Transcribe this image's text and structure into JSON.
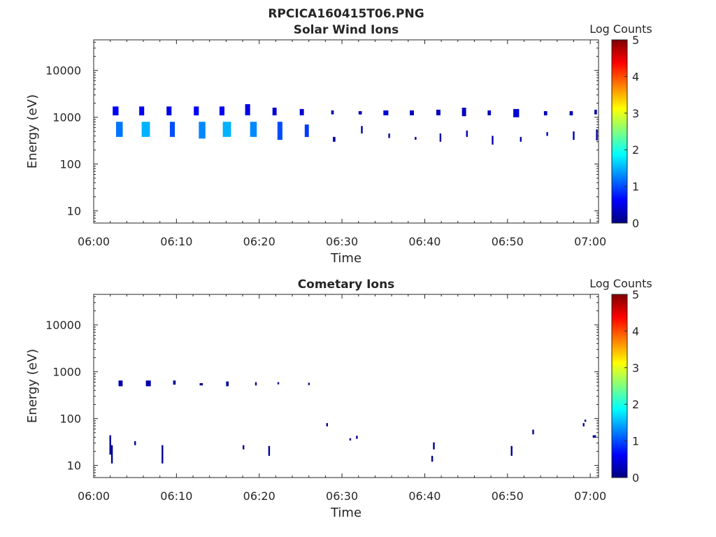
{
  "figure_title": "RPCICA160415T06.PNG",
  "colors": {
    "colormap": [
      "#00007f",
      "#0000ff",
      "#007fff",
      "#00ffff",
      "#7fff7f",
      "#ffff00",
      "#ff7f00",
      "#ff0000",
      "#7f0000"
    ],
    "axis": "#262626"
  },
  "chart_data": [
    {
      "type": "heatmap",
      "title": "Solar Wind Ions",
      "xlabel": "Time",
      "ylabel": "Energy (eV)",
      "x_range_minutes": [
        0,
        61
      ],
      "x_ticks": [
        {
          "v": 0,
          "label": "06:00"
        },
        {
          "v": 10,
          "label": "06:10"
        },
        {
          "v": 20,
          "label": "06:20"
        },
        {
          "v": 30,
          "label": "06:30"
        },
        {
          "v": 40,
          "label": "06:40"
        },
        {
          "v": 50,
          "label": "06:50"
        },
        {
          "v": 60,
          "label": "07:00"
        }
      ],
      "y_scale": "log",
      "y_range": [
        5.5,
        45000
      ],
      "y_ticks": [
        {
          "v": 10,
          "label": "10"
        },
        {
          "v": 100,
          "label": "100"
        },
        {
          "v": 1000,
          "label": "1000"
        },
        {
          "v": 10000,
          "label": "10000"
        }
      ],
      "colorbar": {
        "label": "Log Counts",
        "range": [
          0,
          5
        ],
        "ticks": [
          "0",
          "1",
          "2",
          "3",
          "4",
          "5"
        ]
      },
      "patches": [
        {
          "t": 2.3,
          "dt": 0.7,
          "e1": 1100,
          "e2": 1700,
          "c": 0.6
        },
        {
          "t": 2.7,
          "dt": 0.8,
          "e1": 380,
          "e2": 800,
          "c": 1.2
        },
        {
          "t": 5.5,
          "dt": 0.6,
          "e1": 1100,
          "e2": 1700,
          "c": 0.6
        },
        {
          "t": 5.8,
          "dt": 1.0,
          "e1": 380,
          "e2": 800,
          "c": 1.5
        },
        {
          "t": 8.8,
          "dt": 0.6,
          "e1": 1100,
          "e2": 1700,
          "c": 0.5
        },
        {
          "t": 9.2,
          "dt": 0.6,
          "e1": 380,
          "e2": 800,
          "c": 1.0
        },
        {
          "t": 12.1,
          "dt": 0.6,
          "e1": 1100,
          "e2": 1700,
          "c": 0.6
        },
        {
          "t": 12.7,
          "dt": 0.8,
          "e1": 350,
          "e2": 800,
          "c": 1.3
        },
        {
          "t": 15.2,
          "dt": 0.6,
          "e1": 1100,
          "e2": 1700,
          "c": 0.6
        },
        {
          "t": 15.6,
          "dt": 1.0,
          "e1": 380,
          "e2": 800,
          "c": 1.5
        },
        {
          "t": 18.3,
          "dt": 0.6,
          "e1": 1100,
          "e2": 1900,
          "c": 0.5
        },
        {
          "t": 18.9,
          "dt": 0.8,
          "e1": 380,
          "e2": 800,
          "c": 1.3
        },
        {
          "t": 21.6,
          "dt": 0.5,
          "e1": 1100,
          "e2": 1600,
          "c": 0.4
        },
        {
          "t": 22.2,
          "dt": 0.6,
          "e1": 330,
          "e2": 800,
          "c": 1.0
        },
        {
          "t": 24.9,
          "dt": 0.5,
          "e1": 1100,
          "e2": 1500,
          "c": 0.4
        },
        {
          "t": 25.5,
          "dt": 0.5,
          "e1": 380,
          "e2": 700,
          "c": 0.9
        },
        {
          "t": 28.7,
          "dt": 0.3,
          "e1": 1150,
          "e2": 1400,
          "c": 0.2
        },
        {
          "t": 28.9,
          "dt": 0.3,
          "e1": 300,
          "e2": 380,
          "c": 0.2
        },
        {
          "t": 32.0,
          "dt": 0.4,
          "e1": 1150,
          "e2": 1350,
          "c": 0.3
        },
        {
          "t": 32.3,
          "dt": 0.2,
          "e1": 450,
          "e2": 650,
          "c": 0.2
        },
        {
          "t": 35.0,
          "dt": 0.6,
          "e1": 1100,
          "e2": 1400,
          "c": 0.4
        },
        {
          "t": 35.6,
          "dt": 0.2,
          "e1": 360,
          "e2": 450,
          "c": 0.2
        },
        {
          "t": 38.2,
          "dt": 0.5,
          "e1": 1100,
          "e2": 1400,
          "c": 0.3
        },
        {
          "t": 38.8,
          "dt": 0.2,
          "e1": 330,
          "e2": 380,
          "c": 0.2
        },
        {
          "t": 41.4,
          "dt": 0.5,
          "e1": 1100,
          "e2": 1450,
          "c": 0.3
        },
        {
          "t": 41.8,
          "dt": 0.2,
          "e1": 300,
          "e2": 450,
          "c": 0.2
        },
        {
          "t": 44.5,
          "dt": 0.5,
          "e1": 1050,
          "e2": 1600,
          "c": 0.3
        },
        {
          "t": 45.0,
          "dt": 0.2,
          "e1": 380,
          "e2": 520,
          "c": 0.2
        },
        {
          "t": 47.6,
          "dt": 0.4,
          "e1": 1100,
          "e2": 1400,
          "c": 0.3
        },
        {
          "t": 48.1,
          "dt": 0.2,
          "e1": 260,
          "e2": 400,
          "c": 0.2
        },
        {
          "t": 50.7,
          "dt": 0.7,
          "e1": 1000,
          "e2": 1500,
          "c": 0.4
        },
        {
          "t": 51.5,
          "dt": 0.2,
          "e1": 300,
          "e2": 380,
          "c": 0.2
        },
        {
          "t": 54.4,
          "dt": 0.4,
          "e1": 1100,
          "e2": 1350,
          "c": 0.3
        },
        {
          "t": 54.7,
          "dt": 0.2,
          "e1": 400,
          "e2": 480,
          "c": 0.2
        },
        {
          "t": 57.5,
          "dt": 0.4,
          "e1": 1100,
          "e2": 1350,
          "c": 0.3
        },
        {
          "t": 57.9,
          "dt": 0.2,
          "e1": 330,
          "e2": 500,
          "c": 0.2
        },
        {
          "t": 60.5,
          "dt": 0.3,
          "e1": 1150,
          "e2": 1450,
          "c": 0.2
        },
        {
          "t": 60.7,
          "dt": 0.2,
          "e1": 320,
          "e2": 550,
          "c": 0.2
        }
      ]
    },
    {
      "type": "heatmap",
      "title": "Cometary Ions",
      "xlabel": "Time",
      "ylabel": "Energy (eV)",
      "x_range_minutes": [
        0,
        61
      ],
      "x_ticks": [
        {
          "v": 0,
          "label": "06:00"
        },
        {
          "v": 10,
          "label": "06:10"
        },
        {
          "v": 20,
          "label": "06:20"
        },
        {
          "v": 30,
          "label": "06:30"
        },
        {
          "v": 40,
          "label": "06:40"
        },
        {
          "v": 50,
          "label": "06:50"
        },
        {
          "v": 60,
          "label": "07:00"
        }
      ],
      "y_scale": "log",
      "y_range": [
        5.5,
        45000
      ],
      "y_ticks": [
        {
          "v": 10,
          "label": "10"
        },
        {
          "v": 100,
          "label": "100"
        },
        {
          "v": 1000,
          "label": "1000"
        },
        {
          "v": 10000,
          "label": "10000"
        }
      ],
      "colorbar": {
        "label": "Log Counts",
        "range": [
          0,
          5
        ],
        "ticks": [
          "0",
          "1",
          "2",
          "3",
          "4",
          "5"
        ]
      },
      "patches": [
        {
          "t": 3.0,
          "dt": 0.5,
          "e1": 490,
          "e2": 650,
          "c": 0.2
        },
        {
          "t": 6.3,
          "dt": 0.6,
          "e1": 490,
          "e2": 650,
          "c": 0.2
        },
        {
          "t": 9.6,
          "dt": 0.3,
          "e1": 530,
          "e2": 650,
          "c": 0.1
        },
        {
          "t": 12.8,
          "dt": 0.4,
          "e1": 510,
          "e2": 570,
          "c": 0.1
        },
        {
          "t": 16.0,
          "dt": 0.3,
          "e1": 490,
          "e2": 620,
          "c": 0.1
        },
        {
          "t": 19.5,
          "dt": 0.2,
          "e1": 510,
          "e2": 600,
          "c": 0.1
        },
        {
          "t": 22.2,
          "dt": 0.2,
          "e1": 540,
          "e2": 600,
          "c": 0.1
        },
        {
          "t": 25.9,
          "dt": 0.2,
          "e1": 520,
          "e2": 580,
          "c": 0.1
        },
        {
          "t": 1.9,
          "dt": 0.2,
          "e1": 17,
          "e2": 44,
          "c": 0.1
        },
        {
          "t": 2.1,
          "dt": 0.2,
          "e1": 11,
          "e2": 27,
          "c": 0.1
        },
        {
          "t": 4.9,
          "dt": 0.2,
          "e1": 27,
          "e2": 33,
          "c": 0.1
        },
        {
          "t": 8.2,
          "dt": 0.2,
          "e1": 11,
          "e2": 27,
          "c": 0.1
        },
        {
          "t": 18.0,
          "dt": 0.2,
          "e1": 22,
          "e2": 27,
          "c": 0.1
        },
        {
          "t": 21.1,
          "dt": 0.2,
          "e1": 16,
          "e2": 26,
          "c": 0.1
        },
        {
          "t": 28.1,
          "dt": 0.2,
          "e1": 68,
          "e2": 80,
          "c": 0.1
        },
        {
          "t": 30.9,
          "dt": 0.2,
          "e1": 34,
          "e2": 38,
          "c": 0.1
        },
        {
          "t": 31.7,
          "dt": 0.2,
          "e1": 37,
          "e2": 43,
          "c": 0.1
        },
        {
          "t": 40.8,
          "dt": 0.2,
          "e1": 12,
          "e2": 16,
          "c": 0.1
        },
        {
          "t": 41.0,
          "dt": 0.2,
          "e1": 22,
          "e2": 31,
          "c": 0.1
        },
        {
          "t": 50.4,
          "dt": 0.2,
          "e1": 16,
          "e2": 26,
          "c": 0.1
        },
        {
          "t": 53.0,
          "dt": 0.2,
          "e1": 46,
          "e2": 58,
          "c": 0.1
        },
        {
          "t": 59.1,
          "dt": 0.2,
          "e1": 68,
          "e2": 80,
          "c": 0.1
        },
        {
          "t": 59.3,
          "dt": 0.2,
          "e1": 85,
          "e2": 95,
          "c": 0.1
        },
        {
          "t": 60.3,
          "dt": 0.4,
          "e1": 39,
          "e2": 44,
          "c": 0.1
        }
      ]
    }
  ]
}
